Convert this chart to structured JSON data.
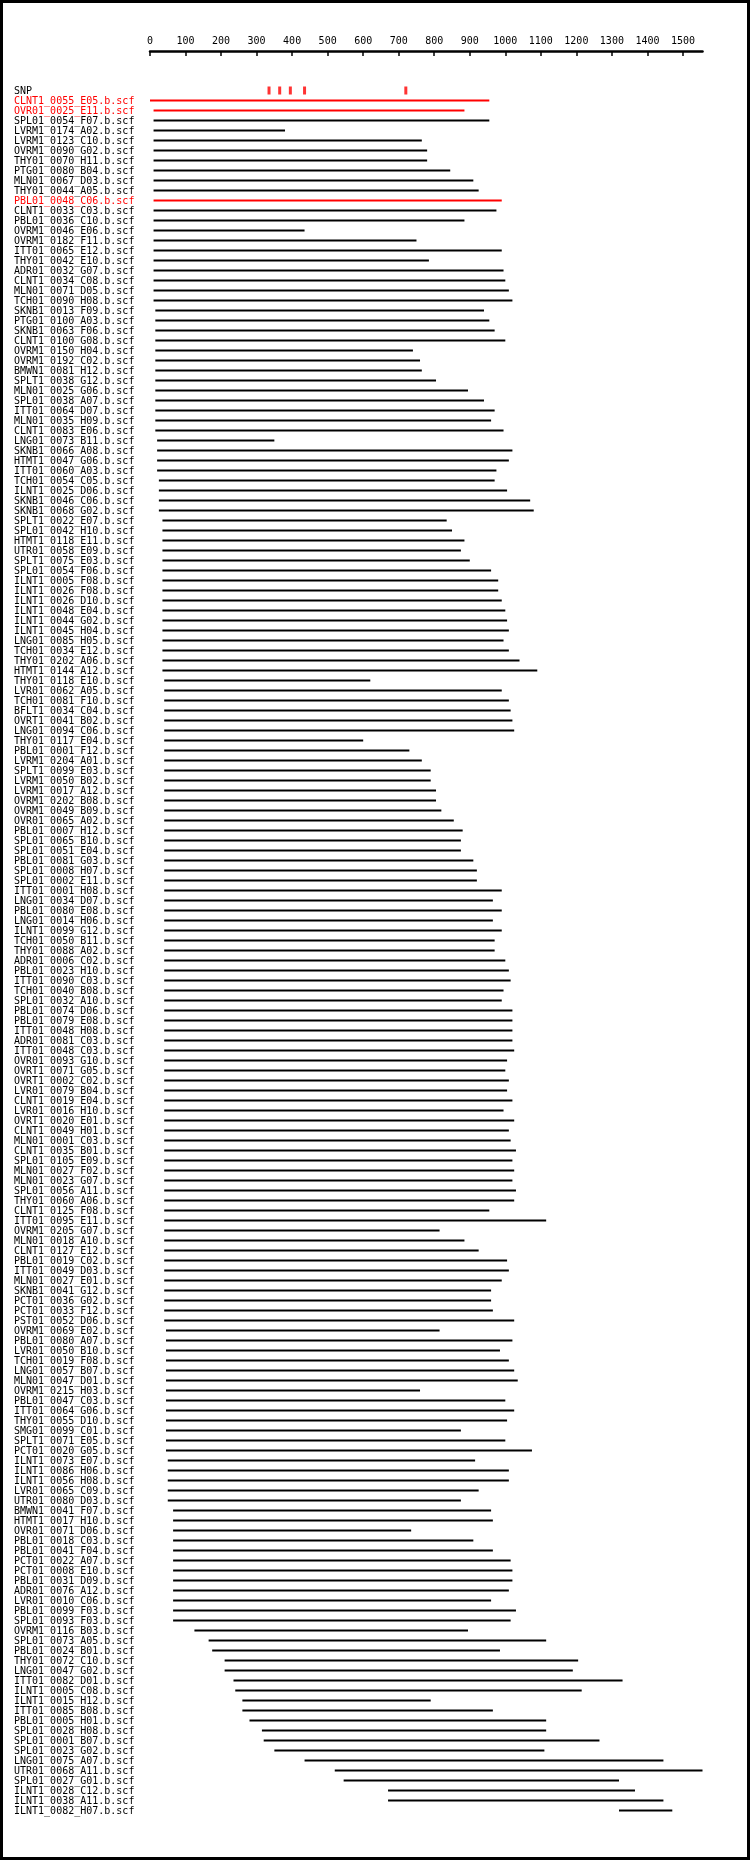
{
  "chart_data": {
    "type": "bar",
    "orientation": "horizontal",
    "xlim": [
      0,
      1555
    ],
    "xticks": [
      0,
      100,
      200,
      300,
      400,
      500,
      600,
      700,
      800,
      900,
      1000,
      1100,
      1200,
      1300,
      1400,
      1500
    ],
    "categories": [
      "SNP",
      "CLNT1_0055_E05.b.scf",
      "OVR01_0025_E11.b.scf",
      "SPL01_0054_F07.b.scf",
      "LVRM1_0174_A02.b.scf",
      "LVRM1_0123_C10.b.scf",
      "OVRM1_0090_G02.b.scf",
      "THY01_0070_H11.b.scf",
      "PTG01_0080_B04.b.scf",
      "MLN01_0067_D03.b.scf",
      "THY01_0044_A05.b.scf",
      "PBL01_0048_C06.b.scf",
      "CLNT1_0033_C03.b.scf",
      "PBL01_0036_C10.b.scf",
      "OVRM1_0046_E06.b.scf",
      "OVRM1_0182_F11.b.scf",
      "ITT01_0065_E12.b.scf",
      "THY01_0042_E10.b.scf",
      "ADR01_0032_G07.b.scf",
      "CLNT1_0034_C08.b.scf",
      "MLN01_0071_D05.b.scf",
      "TCH01_0090_H08.b.scf",
      "SKNB1_0013_F09.b.scf",
      "PTG01_0100_A03.b.scf",
      "SKNB1_0063_F06.b.scf",
      "CLNT1_0100_G08.b.scf",
      "OVRM1_0150_H04.b.scf",
      "OVRM1_0192_C02.b.scf",
      "BMWN1_0081_H12.b.scf",
      "SPLT1_0038_G12.b.scf",
      "MLN01_0025_G06.b.scf",
      "SPL01_0038_A07.b.scf",
      "ITT01_0064_D07.b.scf",
      "MLN01_0035_H09.b.scf",
      "CLNT1_0083_E06.b.scf",
      "LNG01_0073_B11.b.scf",
      "SKNB1_0066_A08.b.scf",
      "HTMT1_0047_G06.b.scf",
      "ITT01_0060_A03.b.scf",
      "TCH01_0054_C05.b.scf",
      "ILNT1_0025_D06.b.scf",
      "SKNB1_0046_C06.b.scf",
      "SKNB1_0068_G02.b.scf",
      "SPLT1_0022_E07.b.scf",
      "SPL01_0042_H10.b.scf",
      "HTMT1_0118_E11.b.scf",
      "UTR01_0058_E09.b.scf",
      "SPLT1_0075_E03.b.scf",
      "SPL01_0054_F06.b.scf",
      "ILNT1_0005_F08.b.scf",
      "ILNT1_0026_F08.b.scf",
      "ILNT1_0026_D10.b.scf",
      "ILNT1_0048_E04.b.scf",
      "ILNT1_0044_G02.b.scf",
      "ILNT1_0045_H04.b.scf",
      "LNG01_0085_H05.b.scf",
      "TCH01_0034_E12.b.scf",
      "THY01_0202_A06.b.scf",
      "HTMT1_0144_A12.b.scf",
      "THY01_0118_E10.b.scf",
      "LVR01_0062_A05.b.scf",
      "TCH01_0081_F10.b.scf",
      "BFLT1_0034_C04.b.scf",
      "OVRT1_0041_B02.b.scf",
      "LNG01_0094_C06.b.scf",
      "THY01_0117_E04.b.scf",
      "PBL01_0001_F12.b.scf",
      "LVRM1_0204_A01.b.scf",
      "SPLT1_0099_E03.b.scf",
      "LVRM1_0050_B02.b.scf",
      "LVRM1_0017_A12.b.scf",
      "OVRM1_0202_B08.b.scf",
      "OVRM1_0049_B09.b.scf",
      "OVR01_0065_A02.b.scf",
      "PBL01_0007_H12.b.scf",
      "SPL01_0065_B10.b.scf",
      "SPL01_0051_E04.b.scf",
      "PBL01_0081_G03.b.scf",
      "SPL01_0008_H07.b.scf",
      "SPL01_0002_E11.b.scf",
      "ITT01_0001_H08.b.scf",
      "LNG01_0034_D07.b.scf",
      "PBL01_0080_E08.b.scf",
      "LNG01_0014_H06.b.scf",
      "ILNT1_0099_G12.b.scf",
      "TCH01_0050_B11.b.scf",
      "THY01_0088_A02.b.scf",
      "ADR01_0006_C02.b.scf",
      "PBL01_0023_H10.b.scf",
      "ITT01_0090_C03.b.scf",
      "TCH01_0040_B08.b.scf",
      "SPL01_0032_A10.b.scf",
      "PBL01_0074_D06.b.scf",
      "PBL01_0079_E08.b.scf",
      "ITT01_0048_H08.b.scf",
      "ADR01_0081_C03.b.scf",
      "ITT01_0048_C03.b.scf",
      "OVR01_0093_G10.b.scf",
      "OVRT1_0071_G05.b.scf",
      "OVRT1_0002_C02.b.scf",
      "LVR01_0079_B04.b.scf",
      "CLNT1_0019_E04.b.scf",
      "LVR01_0016_H10.b.scf",
      "OVRT1_0020_E01.b.scf",
      "CLNT1_0049_H01.b.scf",
      "MLN01_0001_C03.b.scf",
      "CLNT1_0035_B01.b.scf",
      "SPL01_0105_E09.b.scf",
      "MLN01_0027_F02.b.scf",
      "MLN01_0023_G07.b.scf",
      "SPL01_0056_A11.b.scf",
      "THY01_0060_A06.b.scf",
      "CLNT1_0125_F08.b.scf",
      "ITT01_0095_E11.b.scf",
      "OVRM1_0205_G07.b.scf",
      "MLN01_0018_A10.b.scf",
      "CLNT1_0127_E12.b.scf",
      "PBL01_0019_C02.b.scf",
      "ITT01_0049_D03.b.scf",
      "MLN01_0027_E01.b.scf",
      "SKNB1_0041_G12.b.scf",
      "PCT01_0036_G02.b.scf",
      "PCT01_0033_F12.b.scf",
      "PST01_0052_D06.b.scf",
      "OVRM1_0069_E02.b.scf",
      "PBL01_0080_A07.b.scf",
      "LVR01_0050_B10.b.scf",
      "TCH01_0019_F08.b.scf",
      "LNG01_0057_B07.b.scf",
      "MLN01_0047_D01.b.scf",
      "OVRM1_0215_H03.b.scf",
      "PBL01_0047_C03.b.scf",
      "ITT01_0064_G06.b.scf",
      "THY01_0055_D10.b.scf",
      "SMG01_0099_C01.b.scf",
      "SPLT1_0071_E05.b.scf",
      "PCT01_0020_G05.b.scf",
      "ILNT1_0073_E07.b.scf",
      "ILNT1_0086_H06.b.scf",
      "ILNT1_0056_H08.b.scf",
      "LVR01_0065_C09.b.scf",
      "UTR01_0080_D03.b.scf",
      "BMWN1_0041_F07.b.scf",
      "HTMT1_0017_H10.b.scf",
      "OVR01_0071_D06.b.scf",
      "PBL01_0018_C03.b.scf",
      "PBL01_0041_F04.b.scf",
      "PCT01_0022_A07.b.scf",
      "PCT01_0008_E10.b.scf",
      "PBL01_0031_D09.b.scf",
      "ADR01_0076_A12.b.scf",
      "LVR01_0010_C06.b.scf",
      "PBL01_0099_F03.b.scf",
      "SPL01_0093_F03.b.scf",
      "OVRM1_0116_B03.b.scf",
      "SPL01_0073_A05.b.scf",
      "PBL01_0024_B01.b.scf",
      "THY01_0072_C10.b.scf",
      "LNG01_0047_G02.b.scf",
      "ITT01_0082_D01.b.scf",
      "ILNT1_0005_C08.b.scf",
      "ILNT1_0015_H12.b.scf",
      "ITT01_0085_B08.b.scf",
      "PBL01_0005_H01.b.scf",
      "SPL01_0028_H08.b.scf",
      "SPL01_0001_B07.b.scf",
      "SPL01_0023_G02.b.scf",
      "LNG01_0075_A07.b.scf",
      "UTR01_0068_A11.b.scf",
      "SPL01_0027_G01.b.scf",
      "ILNT1_0028_C12.b.scf",
      "ILNT1_0038_A11.b.scf",
      "ILNT1_0082_H07.b.scf"
    ],
    "series": [
      {
        "type": "scatter",
        "color": "#ff0000",
        "x": [
          "SNP",
          "SNP",
          "SNP",
          "SNP",
          "SNP"
        ],
        "values": [
          335,
          365,
          395,
          435,
          720
        ]
      },
      {
        "base": [
          null,
          0,
          10,
          10,
          10,
          10,
          10,
          10,
          10,
          10,
          10,
          10,
          10,
          10,
          10,
          10,
          10,
          10,
          10,
          10,
          10,
          10,
          15,
          15,
          15,
          15,
          15,
          15,
          15,
          15,
          15,
          15,
          15,
          15,
          15,
          20,
          20,
          20,
          20,
          25,
          25,
          25,
          25,
          35,
          35,
          35,
          35,
          35,
          35,
          35,
          35,
          35,
          35,
          35,
          35,
          35,
          35,
          35,
          35,
          40,
          40,
          40,
          40,
          40,
          40,
          40,
          40,
          40,
          40,
          40,
          40,
          40,
          40,
          40,
          40,
          40,
          40,
          40,
          40,
          40,
          40,
          40,
          40,
          40,
          40,
          40,
          40,
          40,
          40,
          40,
          40,
          40,
          40,
          40,
          40,
          40,
          40,
          40,
          40,
          40,
          40,
          40,
          40,
          40,
          40,
          40,
          40,
          40,
          40,
          40,
          40,
          40,
          40,
          40,
          40,
          40,
          40,
          40,
          40,
          40,
          40,
          40,
          40,
          40,
          45,
          45,
          45,
          45,
          45,
          45,
          45,
          45,
          45,
          45,
          45,
          45,
          45,
          50,
          50,
          50,
          50,
          50,
          65,
          65,
          65,
          65,
          65,
          65,
          65,
          65,
          65,
          65,
          65,
          65,
          125,
          165,
          175,
          210,
          210,
          235,
          240,
          260,
          260,
          280,
          315,
          320,
          350,
          435,
          520,
          545,
          670,
          670,
          1320
        ],
        "values": [
          null,
          955,
          875,
          945,
          370,
          755,
          770,
          770,
          835,
          900,
          915,
          980,
          965,
          875,
          425,
          740,
          980,
          775,
          985,
          990,
          1000,
          1010,
          925,
          940,
          955,
          985,
          725,
          745,
          750,
          790,
          880,
          925,
          955,
          945,
          980,
          330,
          1000,
          990,
          955,
          945,
          980,
          1045,
          1055,
          800,
          815,
          850,
          840,
          865,
          925,
          945,
          945,
          955,
          965,
          970,
          975,
          960,
          975,
          1005,
          1055,
          580,
          950,
          970,
          975,
          980,
          985,
          560,
          690,
          725,
          750,
          750,
          765,
          765,
          780,
          815,
          840,
          835,
          835,
          870,
          880,
          880,
          950,
          925,
          950,
          925,
          950,
          930,
          930,
          960,
          970,
          975,
          955,
          950,
          980,
          980,
          980,
          980,
          985,
          965,
          960,
          970,
          965,
          980,
          955,
          985,
          970,
          975,
          990,
          980,
          985,
          980,
          990,
          985,
          915,
          1075,
          775,
          845,
          885,
          965,
          970,
          950,
          920,
          920,
          925,
          985,
          770,
          975,
          940,
          965,
          980,
          990,
          715,
          955,
          980,
          960,
          830,
          955,
          1030,
          865,
          960,
          960,
          875,
          825,
          895,
          900,
          670,
          845,
          900,
          950,
          955,
          955,
          945,
          895,
          965,
          950,
          770,
          950,
          810,
          995,
          980,
          1095,
          975,
          530,
          705,
          835,
          800,
          945,
          760,
          1010,
          1035,
          775,
          695,
          775,
          150
        ],
        "colors": [
          "#000000",
          "#ff0000",
          "#ff0000",
          "#000000",
          "#000000",
          "#000000",
          "#000000",
          "#000000",
          "#000000",
          "#000000",
          "#000000",
          "#ff0000",
          "#000000",
          "#000000",
          "#000000",
          "#000000",
          "#000000",
          "#000000",
          "#000000",
          "#000000",
          "#000000",
          "#000000",
          "#000000",
          "#000000",
          "#000000",
          "#000000",
          "#000000",
          "#000000",
          "#000000",
          "#000000",
          "#000000",
          "#000000",
          "#000000",
          "#000000",
          "#000000",
          "#000000",
          "#000000",
          "#000000",
          "#000000",
          "#000000",
          "#000000",
          "#000000",
          "#000000",
          "#000000",
          "#000000",
          "#000000",
          "#000000",
          "#000000",
          "#000000",
          "#000000",
          "#000000",
          "#000000",
          "#000000",
          "#000000",
          "#000000",
          "#000000",
          "#000000",
          "#000000",
          "#000000",
          "#000000",
          "#000000",
          "#000000",
          "#000000",
          "#000000",
          "#000000",
          "#000000",
          "#000000",
          "#000000",
          "#000000",
          "#000000",
          "#000000",
          "#000000",
          "#000000",
          "#000000",
          "#000000",
          "#000000",
          "#000000",
          "#000000",
          "#000000",
          "#000000",
          "#000000",
          "#000000",
          "#000000",
          "#000000",
          "#000000",
          "#000000",
          "#000000",
          "#000000",
          "#000000",
          "#000000",
          "#000000",
          "#000000",
          "#000000",
          "#000000",
          "#000000",
          "#000000",
          "#000000",
          "#000000",
          "#000000",
          "#000000",
          "#000000",
          "#000000",
          "#000000",
          "#000000",
          "#000000",
          "#000000",
          "#000000",
          "#000000",
          "#000000",
          "#000000",
          "#000000",
          "#000000",
          "#000000",
          "#000000",
          "#000000",
          "#000000",
          "#000000",
          "#000000",
          "#000000",
          "#000000",
          "#000000",
          "#000000",
          "#000000",
          "#000000",
          "#000000",
          "#000000",
          "#000000",
          "#000000",
          "#000000",
          "#000000",
          "#000000",
          "#000000",
          "#000000",
          "#000000",
          "#000000",
          "#000000",
          "#000000",
          "#000000",
          "#000000",
          "#000000",
          "#000000",
          "#000000",
          "#000000",
          "#000000",
          "#000000",
          "#000000",
          "#000000",
          "#000000",
          "#000000",
          "#000000",
          "#000000",
          "#000000",
          "#000000",
          "#000000",
          "#000000",
          "#000000",
          "#000000",
          "#000000",
          "#000000",
          "#000000",
          "#000000",
          "#000000",
          "#000000",
          "#000000",
          "#000000",
          "#000000",
          "#000000",
          "#000000",
          "#000000",
          "#000000",
          "#000000",
          "#000000",
          "#000000"
        ]
      }
    ]
  }
}
